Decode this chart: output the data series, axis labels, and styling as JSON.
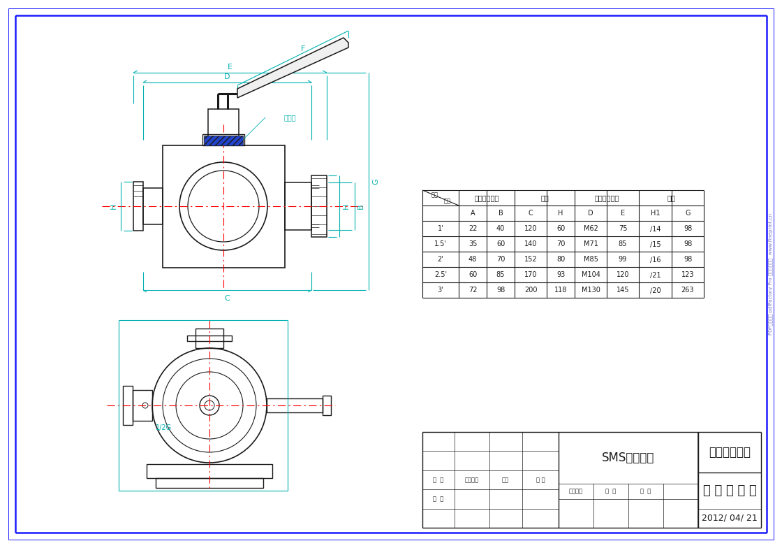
{
  "bg_color": "#ffffff",
  "border_color": "#1a1aff",
  "lc": "#1a1a1a",
  "cc": "#00b0b0",
  "rc": "#ff0000",
  "bc": "#2222cc",
  "table_rows": [
    [
      "1'",
      "22",
      "40",
      "120",
      "60",
      "M62",
      "75",
      "∕14",
      "98"
    ],
    [
      "1.5'",
      "35",
      "60",
      "140",
      "70",
      "M71",
      "85",
      "∕15",
      "98"
    ],
    [
      "2'",
      "48",
      "70",
      "152",
      "80",
      "M85",
      "99",
      "∕16",
      "98"
    ],
    [
      "2.5'",
      "60",
      "85",
      "170",
      "93",
      "M104",
      "120",
      "∕21",
      "123"
    ],
    [
      "3'",
      "72",
      "98",
      "200",
      "118",
      "M130",
      "145",
      "∕20",
      "263"
    ]
  ],
  "tb_company": "温州兴生阀门",
  "tb_product": "三 通 旋 塞 阀",
  "tb_standard": "SMS螺纹标准",
  "tb_date": "2012/ 04/ 21",
  "ann_seal": "密封圈",
  "lbl_guankou": "管口（细级）",
  "lbl_fati": "阀体",
  "lbl_falan": "法兰（螺级）",
  "lbl_shouchui": "手柄",
  "lbl_chicun": "尺寸",
  "lbl_biaoji": "标  记",
  "lbl_gengwen": "更改文件",
  "lbl_qianzi": "签字",
  "lbl_riqi": "日 期",
  "lbl_sheji": "设  计",
  "lbl_tuyang": "图样标记",
  "lbl_zhongliang": "重  量",
  "lbl_bili": "比  例",
  "watermark": "PDF文件使用 pdfFactory Pro 试用版本创建  www.fineprint.cn"
}
